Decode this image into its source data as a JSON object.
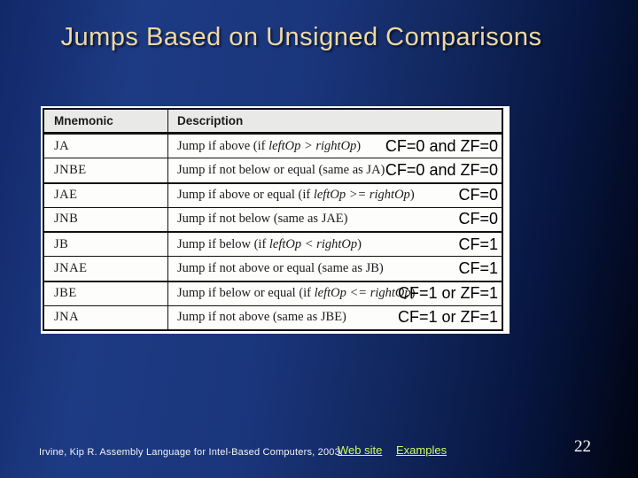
{
  "slide": {
    "title": "Jumps Based on Unsigned Comparisons",
    "page_number": "22"
  },
  "table": {
    "headers": [
      "Mnemonic",
      "Description"
    ],
    "rows": [
      {
        "mnemonic": "JA",
        "description": [
          {
            "t": "Jump if above (if "
          },
          {
            "t": "leftOp > rightOp",
            "i": true
          },
          {
            "t": ")"
          }
        ],
        "flags": "CF=0 and ZF=0",
        "group_start": false
      },
      {
        "mnemonic": "JNBE",
        "description": [
          {
            "t": "Jump if not below or equal (same as JA)"
          }
        ],
        "flags": "CF=0 and ZF=0",
        "group_start": false
      },
      {
        "mnemonic": "JAE",
        "description": [
          {
            "t": "Jump if above or equal (if "
          },
          {
            "t": "leftOp >= rightOp",
            "i": true
          },
          {
            "t": ")"
          }
        ],
        "flags": "CF=0",
        "group_start": true
      },
      {
        "mnemonic": "JNB",
        "description": [
          {
            "t": "Jump if not below (same as JAE)"
          }
        ],
        "flags": "CF=0",
        "group_start": false
      },
      {
        "mnemonic": "JB",
        "description": [
          {
            "t": "Jump if below (if "
          },
          {
            "t": "leftOp < rightOp",
            "i": true
          },
          {
            "t": ")"
          }
        ],
        "flags": "CF=1",
        "group_start": true
      },
      {
        "mnemonic": "JNAE",
        "description": [
          {
            "t": "Jump if not above or equal (same as JB)"
          }
        ],
        "flags": "CF=1",
        "group_start": false
      },
      {
        "mnemonic": "JBE",
        "description": [
          {
            "t": "Jump if below or equal (if "
          },
          {
            "t": "leftOp <= rightOp",
            "i": true
          },
          {
            "t": ")"
          }
        ],
        "flags": "CF=1 or ZF=1",
        "group_start": true
      },
      {
        "mnemonic": "JNA",
        "description": [
          {
            "t": "Jump if not above (same as JBE)"
          }
        ],
        "flags": "CF=1 or ZF=1",
        "group_start": false
      }
    ]
  },
  "footer": {
    "citation": "Irvine, Kip R. Assembly Language for Intel-Based Computers, 2003.",
    "links": [
      {
        "label": "Web site"
      },
      {
        "label": "Examples"
      }
    ]
  },
  "colors": {
    "title_text": "#eed9a4",
    "background_blue": "#1a357b",
    "background_dark": "#020510",
    "link_green": "#ccff66",
    "table_header_bg": "#e9e9e7",
    "table_border": "#121212"
  }
}
